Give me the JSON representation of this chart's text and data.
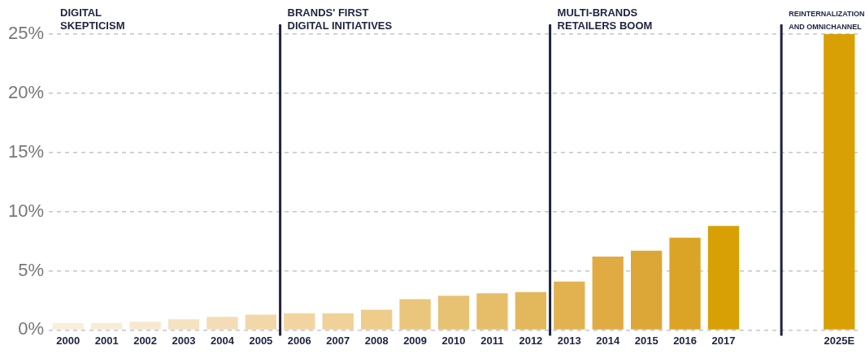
{
  "chart_data": {
    "type": "bar",
    "categories": [
      "2000",
      "2001",
      "2002",
      "2003",
      "2004",
      "2005",
      "2006",
      "2007",
      "2008",
      "2009",
      "2010",
      "2011",
      "2012",
      "2013",
      "2014",
      "2015",
      "2016",
      "2017",
      null,
      null,
      "2025E"
    ],
    "values": [
      0.6,
      0.6,
      0.7,
      0.9,
      1.1,
      1.3,
      1.4,
      1.4,
      1.7,
      2.6,
      2.9,
      3.1,
      3.2,
      4.1,
      6.2,
      6.7,
      7.8,
      8.8,
      null,
      null,
      25
    ],
    "colors": [
      "#f9eedb",
      "#f8ecd6",
      "#f7e8cf",
      "#f5e2c0",
      "#f4ddb6",
      "#f2d8a9",
      "#f1d49f",
      "#efd199",
      "#edcc8c",
      "#eac57c",
      "#e8c273",
      "#e6bd69",
      "#e3b75b",
      "#e2b250",
      "#e0ab43",
      "#dda737",
      "#dca426",
      "#d8a004",
      "#d8a004",
      "#d8a004",
      "#d8a004"
    ],
    "ylim": [
      0,
      25
    ],
    "yticks": [
      {
        "value": 0,
        "label": "0%"
      },
      {
        "value": 5,
        "label": "5%"
      },
      {
        "value": 10,
        "label": "10%"
      },
      {
        "value": 15,
        "label": "15%"
      },
      {
        "value": 20,
        "label": "20%"
      },
      {
        "value": 25,
        "label": "25%"
      }
    ],
    "grid": "y",
    "legend": false,
    "annotations": [
      "DIGITAL\nSKEPTICISM",
      "BRANDS' FIRST\nDIGITAL INITIATIVES",
      "MULTI-BRANDS\nRETAILERS BOOM",
      "REINTERNALIZATION\nAND OMNICHANNEL"
    ]
  }
}
